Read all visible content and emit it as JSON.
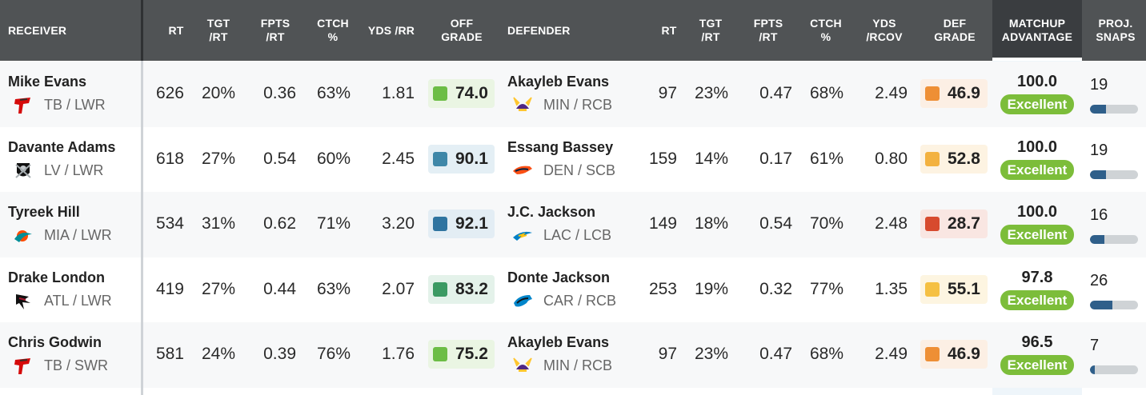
{
  "header": {
    "receiver": [
      "RECEIVER"
    ],
    "rt": [
      "RT"
    ],
    "tgt_rt": [
      "TGT",
      "/RT"
    ],
    "fpts_rt": [
      "FPTS",
      "/RT"
    ],
    "ctch": [
      "CTCH",
      "%"
    ],
    "yds_rr": [
      "YDS /RR"
    ],
    "off_grade": [
      "OFF",
      "GRADE"
    ],
    "defender": [
      "DEFENDER"
    ],
    "d_rt": [
      "RT"
    ],
    "d_tgt_rt": [
      "TGT",
      "/RT"
    ],
    "d_fpts_rt": [
      "FPTS",
      "/RT"
    ],
    "d_ctch": [
      "CTCH",
      "%"
    ],
    "d_yds": [
      "YDS",
      "/RCOV"
    ],
    "def_grade": [
      "DEF",
      "GRADE"
    ],
    "matchup": [
      "MATCHUP",
      "ADVANTAGE"
    ],
    "snaps": [
      "PROJ.",
      "SNAPS"
    ]
  },
  "colors": {
    "header_bg": "#505355",
    "excellent_badge": "#7cbd3a",
    "snap_bar": "#2f5f8a"
  },
  "rows": [
    {
      "receiver": {
        "name": "Mike Evans",
        "team_pos": "TB / LWR",
        "logo": "buccaneers-logo-icon"
      },
      "rt": "626",
      "tgt_rt": "20%",
      "fpts_rt": "0.36",
      "ctch": "63%",
      "yds_rr": "1.81",
      "off_grade": "74.0",
      "off_color": "#6cbd45",
      "off_bg": "#eaf5e3",
      "defender": {
        "name": "Akayleb Evans",
        "team_pos": "MIN / RCB",
        "logo": "vikings-logo-icon"
      },
      "d_rt": "97",
      "d_tgt_rt": "23%",
      "d_fpts_rt": "0.47",
      "d_ctch": "68%",
      "d_yds": "2.49",
      "def_grade": "46.9",
      "def_color": "#ee8f35",
      "def_bg": "#fcefe4",
      "matchup": "100.0",
      "matchup_label": "Excellent",
      "snaps": "19",
      "snap_fill": 0.33
    },
    {
      "receiver": {
        "name": "Davante Adams",
        "team_pos": "LV / LWR",
        "logo": "raiders-logo-icon"
      },
      "rt": "618",
      "tgt_rt": "27%",
      "fpts_rt": "0.54",
      "ctch": "60%",
      "yds_rr": "2.45",
      "off_grade": "90.1",
      "off_color": "#3f87a8",
      "off_bg": "#e4eff5",
      "defender": {
        "name": "Essang Bassey",
        "team_pos": "DEN / SCB",
        "logo": "broncos-logo-icon"
      },
      "d_rt": "159",
      "d_tgt_rt": "14%",
      "d_fpts_rt": "0.17",
      "d_ctch": "61%",
      "d_yds": "0.80",
      "def_grade": "52.8",
      "def_color": "#f3b240",
      "def_bg": "#fdf3e2",
      "matchup": "100.0",
      "matchup_label": "Excellent",
      "snaps": "19",
      "snap_fill": 0.33
    },
    {
      "receiver": {
        "name": "Tyreek Hill",
        "team_pos": "MIA / LWR",
        "logo": "dolphins-logo-icon"
      },
      "rt": "534",
      "tgt_rt": "31%",
      "fpts_rt": "0.62",
      "ctch": "71%",
      "yds_rr": "3.20",
      "off_grade": "92.1",
      "off_color": "#2f74a0",
      "off_bg": "#e3edf4",
      "defender": {
        "name": "J.C. Jackson",
        "team_pos": "LAC / LCB",
        "logo": "chargers-logo-icon"
      },
      "d_rt": "149",
      "d_tgt_rt": "18%",
      "d_fpts_rt": "0.54",
      "d_ctch": "70%",
      "d_yds": "2.48",
      "def_grade": "28.7",
      "def_color": "#d74a2e",
      "def_bg": "#f9e6e2",
      "matchup": "100.0",
      "matchup_label": "Excellent",
      "snaps": "16",
      "snap_fill": 0.3
    },
    {
      "receiver": {
        "name": "Drake London",
        "team_pos": "ATL / LWR",
        "logo": "falcons-logo-icon"
      },
      "rt": "419",
      "tgt_rt": "27%",
      "fpts_rt": "0.44",
      "ctch": "63%",
      "yds_rr": "2.07",
      "off_grade": "83.2",
      "off_color": "#3c9a63",
      "off_bg": "#e4f2ea",
      "defender": {
        "name": "Donte Jackson",
        "team_pos": "CAR / RCB",
        "logo": "panthers-logo-icon"
      },
      "d_rt": "253",
      "d_tgt_rt": "19%",
      "d_fpts_rt": "0.32",
      "d_ctch": "77%",
      "d_yds": "1.35",
      "def_grade": "55.1",
      "def_color": "#f5c042",
      "def_bg": "#fdf5e1",
      "matchup": "97.8",
      "matchup_label": "Excellent",
      "snaps": "26",
      "snap_fill": 0.46
    },
    {
      "receiver": {
        "name": "Chris Godwin",
        "team_pos": "TB / SWR",
        "logo": "buccaneers-logo-icon"
      },
      "rt": "581",
      "tgt_rt": "24%",
      "fpts_rt": "0.39",
      "ctch": "76%",
      "yds_rr": "1.76",
      "off_grade": "75.2",
      "off_color": "#6cbd45",
      "off_bg": "#eaf5e3",
      "defender": {
        "name": "Akayleb Evans",
        "team_pos": "MIN / RCB",
        "logo": "vikings-logo-icon"
      },
      "d_rt": "97",
      "d_tgt_rt": "23%",
      "d_fpts_rt": "0.47",
      "d_ctch": "68%",
      "d_yds": "2.49",
      "def_grade": "46.9",
      "def_color": "#ee8f35",
      "def_bg": "#fcefe4",
      "matchup": "96.5",
      "matchup_label": "Excellent",
      "snaps": "7",
      "snap_fill": 0.1
    }
  ]
}
